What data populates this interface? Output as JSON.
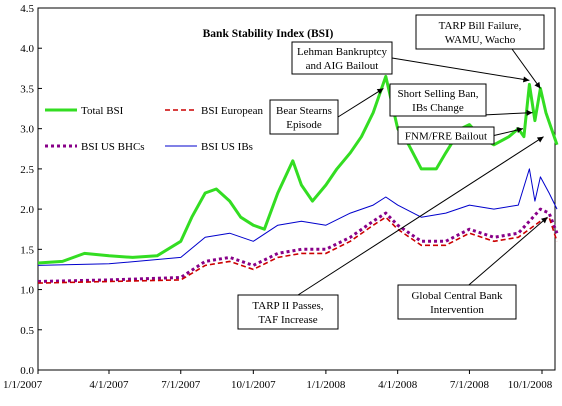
{
  "chart_data": {
    "type": "line",
    "title": "Bank Stability Index (BSI)",
    "xlabel": "",
    "ylabel": "",
    "ylim": [
      0.0,
      4.5
    ],
    "y_ticks": [
      "0.0",
      "0.5",
      "1.0",
      "1.5",
      "2.0",
      "2.5",
      "3.0",
      "3.5",
      "4.0",
      "4.5"
    ],
    "x_ticks": [
      "1/1/2007",
      "4/1/2007",
      "7/1/2007",
      "10/1/2007",
      "1/1/2008",
      "4/1/2008",
      "7/1/2008",
      "10/1/2008"
    ],
    "x_range": [
      "1/1/2007",
      "10/20/2008"
    ],
    "grid": false,
    "legend": "inside upper-left",
    "series": [
      {
        "name": "Total BSI",
        "color": "#33dd22",
        "style": "solid-thick",
        "points": [
          [
            "1/1/2007",
            1.33
          ],
          [
            "2/1/2007",
            1.35
          ],
          [
            "3/1/2007",
            1.45
          ],
          [
            "4/1/2007",
            1.42
          ],
          [
            "5/1/2007",
            1.4
          ],
          [
            "6/1/2007",
            1.42
          ],
          [
            "7/1/2007",
            1.6
          ],
          [
            "7/15/2007",
            1.9
          ],
          [
            "8/1/2007",
            2.2
          ],
          [
            "8/15/2007",
            2.25
          ],
          [
            "9/1/2007",
            2.1
          ],
          [
            "9/15/2007",
            1.9
          ],
          [
            "10/1/2007",
            1.8
          ],
          [
            "10/15/2007",
            1.75
          ],
          [
            "11/1/2007",
            2.2
          ],
          [
            "11/20/2007",
            2.6
          ],
          [
            "12/1/2007",
            2.3
          ],
          [
            "12/15/2007",
            2.1
          ],
          [
            "1/1/2008",
            2.3
          ],
          [
            "1/15/2008",
            2.5
          ],
          [
            "2/1/2008",
            2.7
          ],
          [
            "2/15/2008",
            2.9
          ],
          [
            "3/1/2008",
            3.2
          ],
          [
            "3/17/2008",
            3.65
          ],
          [
            "4/1/2008",
            3.0
          ],
          [
            "4/15/2008",
            2.8
          ],
          [
            "5/1/2008",
            2.5
          ],
          [
            "5/20/2008",
            2.5
          ],
          [
            "6/1/2008",
            2.7
          ],
          [
            "6/20/2008",
            3.0
          ],
          [
            "7/1/2008",
            3.05
          ],
          [
            "7/15/2008",
            2.9
          ],
          [
            "8/1/2008",
            2.8
          ],
          [
            "8/20/2008",
            2.9
          ],
          [
            "9/1/2008",
            3.0
          ],
          [
            "9/8/2008",
            2.9
          ],
          [
            "9/15/2008",
            3.55
          ],
          [
            "9/22/2008",
            3.1
          ],
          [
            "9/29/2008",
            3.5
          ],
          [
            "10/6/2008",
            3.2
          ],
          [
            "10/20/2008",
            2.8
          ]
        ]
      },
      {
        "name": "BSI European",
        "color": "#cc0000",
        "style": "dashed",
        "points": [
          [
            "1/1/2007",
            1.08
          ],
          [
            "4/1/2007",
            1.1
          ],
          [
            "7/1/2007",
            1.12
          ],
          [
            "8/1/2007",
            1.3
          ],
          [
            "9/1/2007",
            1.35
          ],
          [
            "10/1/2007",
            1.25
          ],
          [
            "11/1/2007",
            1.4
          ],
          [
            "12/1/2007",
            1.45
          ],
          [
            "1/1/2008",
            1.45
          ],
          [
            "2/1/2008",
            1.6
          ],
          [
            "3/1/2008",
            1.8
          ],
          [
            "3/17/2008",
            1.9
          ],
          [
            "4/1/2008",
            1.75
          ],
          [
            "5/1/2008",
            1.55
          ],
          [
            "6/1/2008",
            1.55
          ],
          [
            "7/1/2008",
            1.7
          ],
          [
            "8/1/2008",
            1.6
          ],
          [
            "9/1/2008",
            1.65
          ],
          [
            "9/15/2008",
            1.75
          ],
          [
            "9/29/2008",
            1.85
          ],
          [
            "10/10/2008",
            1.9
          ],
          [
            "10/20/2008",
            1.6
          ]
        ]
      },
      {
        "name": "BSI US BHCs",
        "color": "#880088",
        "style": "dotted-thick",
        "points": [
          [
            "1/1/2007",
            1.1
          ],
          [
            "4/1/2007",
            1.12
          ],
          [
            "7/1/2007",
            1.15
          ],
          [
            "8/1/2007",
            1.35
          ],
          [
            "9/1/2007",
            1.4
          ],
          [
            "10/1/2007",
            1.3
          ],
          [
            "11/1/2007",
            1.45
          ],
          [
            "12/1/2007",
            1.5
          ],
          [
            "1/1/2008",
            1.5
          ],
          [
            "2/1/2008",
            1.65
          ],
          [
            "3/1/2008",
            1.85
          ],
          [
            "3/17/2008",
            1.95
          ],
          [
            "4/1/2008",
            1.8
          ],
          [
            "5/1/2008",
            1.6
          ],
          [
            "6/1/2008",
            1.6
          ],
          [
            "7/1/2008",
            1.75
          ],
          [
            "8/1/2008",
            1.65
          ],
          [
            "9/1/2008",
            1.7
          ],
          [
            "9/15/2008",
            1.85
          ],
          [
            "9/29/2008",
            2.0
          ],
          [
            "10/10/2008",
            1.95
          ],
          [
            "10/20/2008",
            1.7
          ]
        ]
      },
      {
        "name": "BSI US IBs",
        "color": "#0000cc",
        "style": "solid-thin",
        "points": [
          [
            "1/1/2007",
            1.3
          ],
          [
            "4/1/2007",
            1.32
          ],
          [
            "7/1/2007",
            1.4
          ],
          [
            "8/1/2007",
            1.65
          ],
          [
            "9/1/2007",
            1.7
          ],
          [
            "10/1/2007",
            1.6
          ],
          [
            "11/1/2007",
            1.8
          ],
          [
            "12/1/2007",
            1.85
          ],
          [
            "1/1/2008",
            1.8
          ],
          [
            "2/1/2008",
            1.95
          ],
          [
            "3/1/2008",
            2.05
          ],
          [
            "3/17/2008",
            2.15
          ],
          [
            "4/1/2008",
            2.05
          ],
          [
            "5/1/2008",
            1.9
          ],
          [
            "6/1/2008",
            1.95
          ],
          [
            "7/1/2008",
            2.05
          ],
          [
            "8/1/2008",
            2.0
          ],
          [
            "9/1/2008",
            2.05
          ],
          [
            "9/15/2008",
            2.5
          ],
          [
            "9/22/2008",
            2.1
          ],
          [
            "9/29/2008",
            2.4
          ],
          [
            "10/10/2008",
            2.2
          ],
          [
            "10/20/2008",
            2.0
          ]
        ]
      }
    ],
    "annotations": [
      {
        "lines": [
          "Bear Stearns",
          "Episode"
        ],
        "target": [
          "3/14/2008",
          3.5
        ]
      },
      {
        "lines": [
          "Lehman Bankruptcy",
          "and AIG Bailout"
        ],
        "target": [
          "9/15/2008",
          3.6
        ]
      },
      {
        "lines": [
          "TARP Bill Failure,",
          "WAMU, Wacho"
        ],
        "target": [
          "9/29/2008",
          3.5
        ]
      },
      {
        "lines": [
          "Short Selling Ban,",
          "IBs Change"
        ],
        "target": [
          "9/19/2008",
          3.2
        ]
      },
      {
        "lines": [
          "FNM/FRE Bailout"
        ],
        "target": [
          "9/7/2008",
          3.0
        ]
      },
      {
        "lines": [
          "TARP II Passes,",
          "TAF Increase"
        ],
        "target": [
          "10/3/2008",
          2.9
        ]
      },
      {
        "lines": [
          "Global Central Bank",
          "Intervention"
        ],
        "target": [
          "10/8/2008",
          1.9
        ]
      }
    ]
  }
}
